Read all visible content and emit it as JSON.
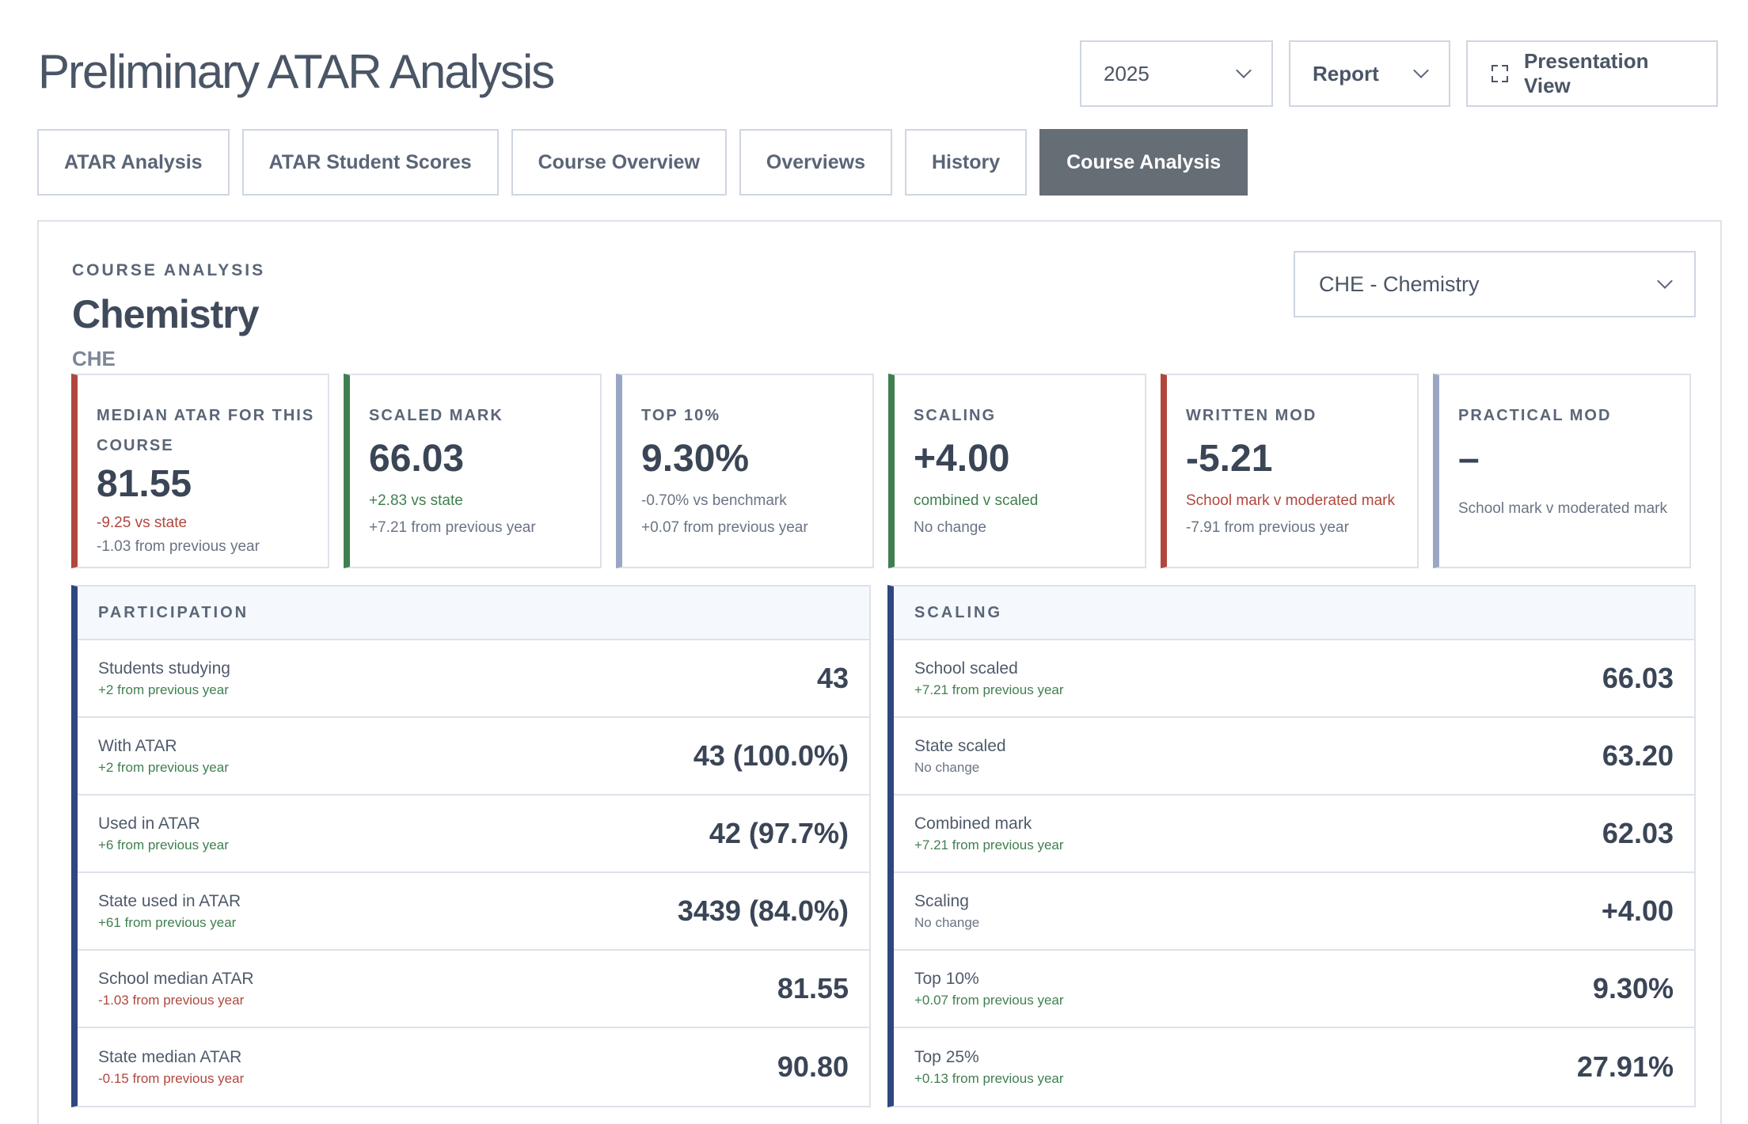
{
  "page": {
    "title": "Preliminary ATAR Analysis"
  },
  "controls": {
    "year": "2025",
    "report": "Report",
    "presentation": "Presentation View"
  },
  "tabs": [
    {
      "label": "ATAR Analysis"
    },
    {
      "label": "ATAR Student Scores"
    },
    {
      "label": "Course Overview"
    },
    {
      "label": "Overviews"
    },
    {
      "label": "History"
    },
    {
      "label": "Course Analysis",
      "active": true
    }
  ],
  "course": {
    "kicker": "COURSE ANALYSIS",
    "name": "Chemistry",
    "code": "CHE",
    "selector": "CHE - Chemistry"
  },
  "kpis": [
    {
      "label": "MEDIAN ATAR FOR THIS COURSE",
      "value": "81.55",
      "line1": "-9.25 vs state",
      "line2": "-1.03 from previous year",
      "accent": "#b0473d"
    },
    {
      "label": "SCALED MARK",
      "value": "66.03",
      "line1": "+2.83 vs state",
      "line2": "+7.21 from previous year",
      "accent": "#3f7f4f"
    },
    {
      "label": "TOP 10%",
      "value": "9.30%",
      "line1": "-0.70% vs benchmark",
      "line2": "+0.07 from previous year",
      "accent": "#9aa7c4"
    },
    {
      "label": "SCALING",
      "value": "+4.00",
      "line1": "combined v scaled",
      "line2": "No change",
      "accent": "#3f7f4f"
    },
    {
      "label": "WRITTEN MOD",
      "value": "-5.21",
      "line1": "School mark v moderated mark",
      "line2": "-7.91 from previous year",
      "accent": "#b0473d"
    },
    {
      "label": "PRACTICAL MOD",
      "value": "–",
      "line1": "School mark v moderated mark",
      "line2": "",
      "accent": "#9aa7c4"
    }
  ],
  "participation": {
    "title": "PARTICIPATION",
    "rows": [
      {
        "name": "Students studying",
        "sub": "+2 from previous year",
        "value": "43",
        "tone": "green"
      },
      {
        "name": "With ATAR",
        "sub": "+2 from previous year",
        "value": "43 (100.0%)",
        "tone": "green"
      },
      {
        "name": "Used in ATAR",
        "sub": "+6 from previous year",
        "value": "42 (97.7%)",
        "tone": "green"
      },
      {
        "name": "State used in ATAR",
        "sub": "+61 from previous year",
        "value": "3439 (84.0%)",
        "tone": "green"
      },
      {
        "name": "School median ATAR",
        "sub": "-1.03 from previous year",
        "value": "81.55",
        "tone": "red"
      },
      {
        "name": "State median ATAR",
        "sub": "-0.15 from previous year",
        "value": "90.80",
        "tone": "red"
      }
    ]
  },
  "scaling": {
    "title": "SCALING",
    "rows": [
      {
        "name": "School scaled",
        "sub": "+7.21 from previous year",
        "value": "66.03",
        "tone": "green"
      },
      {
        "name": "State scaled",
        "sub": "No change",
        "value": "63.20",
        "tone": "gray"
      },
      {
        "name": "Combined mark",
        "sub": "+7.21 from previous year",
        "value": "62.03",
        "tone": "green"
      },
      {
        "name": "Scaling",
        "sub": "No change",
        "value": "+4.00",
        "tone": "gray"
      },
      {
        "name": "Top 10%",
        "sub": "+0.07 from previous year",
        "value": "9.30%",
        "tone": "green"
      },
      {
        "name": "Top 25%",
        "sub": "+0.13 from previous year",
        "value": "27.91%",
        "tone": "green"
      }
    ]
  }
}
